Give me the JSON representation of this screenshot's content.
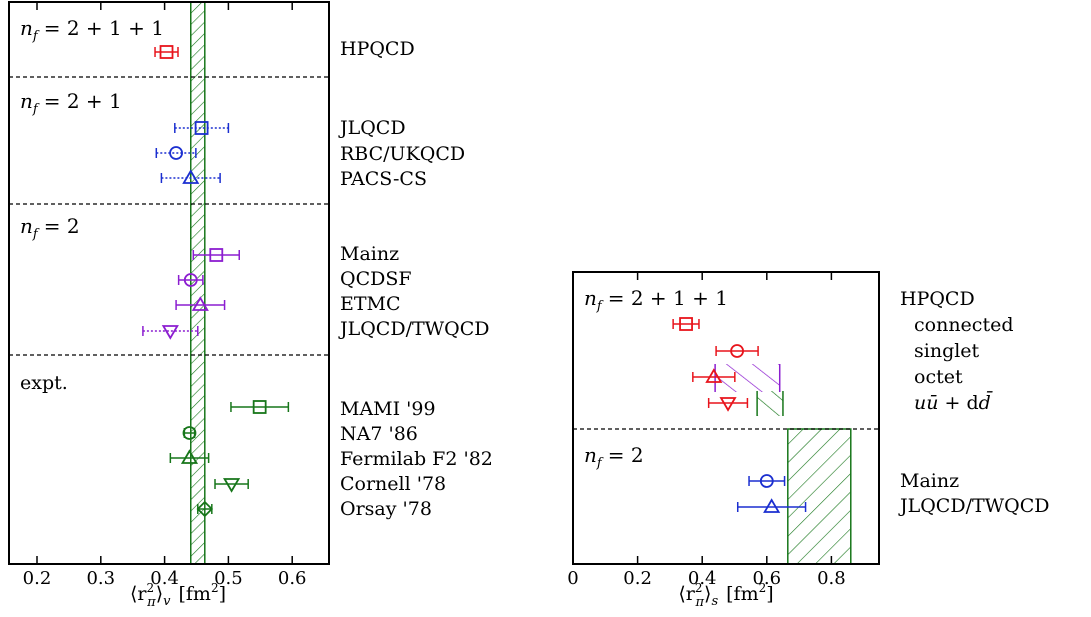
{
  "colors": {
    "red": "#e8141c",
    "blue": "#1b2fd0",
    "purple": "#8c1ed0",
    "green": "#17761a",
    "black": "#000000"
  },
  "chart_data": [
    {
      "type": "scatter",
      "xlabel": "⟨r²π⟩v [fm²]",
      "xlim": [
        0.15,
        0.65
      ],
      "xticks": [
        0.2,
        0.3,
        0.4,
        0.5,
        0.6
      ],
      "xtick_labels": [
        "0.2",
        "0.3",
        "0.4",
        "0.5",
        "0.6"
      ],
      "band": {
        "low": 0.441,
        "high": 0.463,
        "pattern": "hatched",
        "color": "green"
      },
      "groups": [
        {
          "label": "n_f = 2 + 1 + 1",
          "points": [
            {
              "name": "HPQCD",
              "x": 0.403,
              "err": 0.018,
              "marker": "square",
              "color": "red",
              "style": "solid"
            }
          ]
        },
        {
          "label": "n_f = 2 + 1",
          "points": [
            {
              "name": "JLQCD",
              "x": 0.458,
              "err": 0.042,
              "marker": "square",
              "color": "blue",
              "style": "dotted"
            },
            {
              "name": "RBC/UKQCD",
              "x": 0.418,
              "err": 0.031,
              "marker": "circle",
              "color": "blue",
              "style": "dotted"
            },
            {
              "name": "PACS-CS",
              "x": 0.441,
              "err": 0.046,
              "marker": "triangle-up",
              "color": "blue",
              "style": "dotted"
            }
          ]
        },
        {
          "label": "n_f = 2",
          "points": [
            {
              "name": "Mainz",
              "x": 0.481,
              "err": 0.036,
              "marker": "square",
              "color": "purple",
              "style": "solid"
            },
            {
              "name": "QCDSF",
              "x": 0.441,
              "err": 0.019,
              "marker": "circle",
              "color": "purple",
              "style": "solid"
            },
            {
              "name": "ETMC",
              "x": 0.456,
              "err": 0.038,
              "marker": "triangle-up",
              "color": "purple",
              "style": "solid"
            },
            {
              "name": "JLQCD/TWQCD",
              "x": 0.409,
              "err": 0.043,
              "marker": "triangle-down",
              "color": "purple",
              "style": "dotted"
            }
          ]
        },
        {
          "label": "expt.",
          "points": [
            {
              "name": "MAMI '99",
              "x": 0.549,
              "err": 0.045,
              "marker": "square",
              "color": "green",
              "style": "solid"
            },
            {
              "name": "NA7 '86",
              "x": 0.439,
              "err": 0.008,
              "marker": "circle",
              "color": "green",
              "style": "solid"
            },
            {
              "name": "Fermilab F2 '82",
              "x": 0.439,
              "err": 0.03,
              "marker": "triangle-up",
              "color": "green",
              "style": "solid"
            },
            {
              "name": "Cornell '78",
              "x": 0.505,
              "err": 0.026,
              "marker": "triangle-down",
              "color": "green",
              "style": "solid"
            },
            {
              "name": "Orsay '78",
              "x": 0.463,
              "err": 0.011,
              "marker": "diamond",
              "color": "green",
              "style": "solid"
            }
          ]
        }
      ]
    },
    {
      "type": "scatter",
      "xlabel": "⟨r²π⟩s [fm²]",
      "xlim": [
        0,
        0.9
      ],
      "xticks": [
        0,
        0.2,
        0.4,
        0.6,
        0.8
      ],
      "xtick_labels": [
        "0",
        "0.2",
        "0.4",
        "0.6",
        "0.8"
      ],
      "groups": [
        {
          "label": "n_f = 2 + 1 + 1",
          "title": "HPQCD",
          "points": [
            {
              "name": "",
              "x": 0.35,
              "err": 0.04,
              "marker": "square",
              "color": "red",
              "style": "solid"
            },
            {
              "name": "connected",
              "x": 0.508,
              "err": 0.065,
              "marker": "circle",
              "color": "red",
              "style": "solid"
            },
            {
              "name": "singlet",
              "x": 0.436,
              "err": 0.065,
              "marker": "triangle-up",
              "color": "red",
              "style": "solid"
            },
            {
              "name": "octet",
              "x": 0.48,
              "err": 0.06,
              "marker": "triangle-down",
              "color": "red",
              "style": "solid"
            }
          ],
          "bands": [
            {
              "name": "uū + dd̄",
              "low": 0.44,
              "high": 0.64,
              "color": "purple",
              "row": 2.5
            },
            {
              "name": "uū + dd̄",
              "low": 0.57,
              "high": 0.65,
              "color": "green",
              "row": 3.5
            }
          ]
        },
        {
          "label": "n_f = 2",
          "points": [
            {
              "name": "Mainz",
              "x": 0.6,
              "err": 0.055,
              "marker": "circle",
              "color": "blue",
              "style": "solid"
            },
            {
              "name": "JLQCD/TWQCD",
              "x": 0.615,
              "err": 0.105,
              "marker": "triangle-up",
              "color": "blue",
              "style": "solid"
            }
          ],
          "bands": [
            {
              "name": "",
              "low": 0.665,
              "high": 0.86,
              "color": "green",
              "span": "full"
            }
          ]
        }
      ]
    }
  ],
  "labels": {
    "left": {
      "g1": "n",
      "g1_sub": "f",
      "g1_rest": "= 2 + 1 + 1",
      "g2": "n",
      "g2_sub": "f",
      "g2_rest": "= 2 + 1",
      "g3": "n",
      "g3_sub": "f",
      "g3_rest": "= 2",
      "g4": "expt.",
      "names": [
        "HPQCD",
        "JLQCD",
        "RBC/UKQCD",
        "PACS-CS",
        "Mainz",
        "QCDSF",
        "ETMC",
        "JLQCD/TWQCD",
        "MAMI '99",
        "NA7 '86",
        "Fermilab F2 '82",
        "Cornell '78",
        "Orsay '78"
      ],
      "xlabel_pre": "⟨r",
      "xlabel_sup": "2",
      "xlabel_sub": "π",
      "xlabel_post": "⟩",
      "xlabel_sub2": "v",
      "xlabel_unit": "[fm",
      "xlabel_unit_sup": "2",
      "xlabel_unit_end": "]"
    },
    "right": {
      "g1": "n",
      "g1_sub": "f",
      "g1_rest": "= 2 + 1 + 1",
      "g2": "n",
      "g2_sub": "f",
      "g2_rest": "= 2",
      "names": [
        "HPQCD",
        "connected",
        "singlet",
        "octet"
      ],
      "names_nf2": [
        "Mainz",
        "JLQCD/TWQCD"
      ],
      "uubar_pre": "u",
      "uubar_u": "ū",
      "uubar_mid": " + d",
      "uubar_d": "d̄",
      "xlabel_pre": "⟨r",
      "xlabel_sup": "2",
      "xlabel_sub": "π",
      "xlabel_post": "⟩",
      "xlabel_sub2": "s",
      "xlabel_unit": "[fm",
      "xlabel_unit_sup": "2",
      "xlabel_unit_end": "]"
    }
  }
}
